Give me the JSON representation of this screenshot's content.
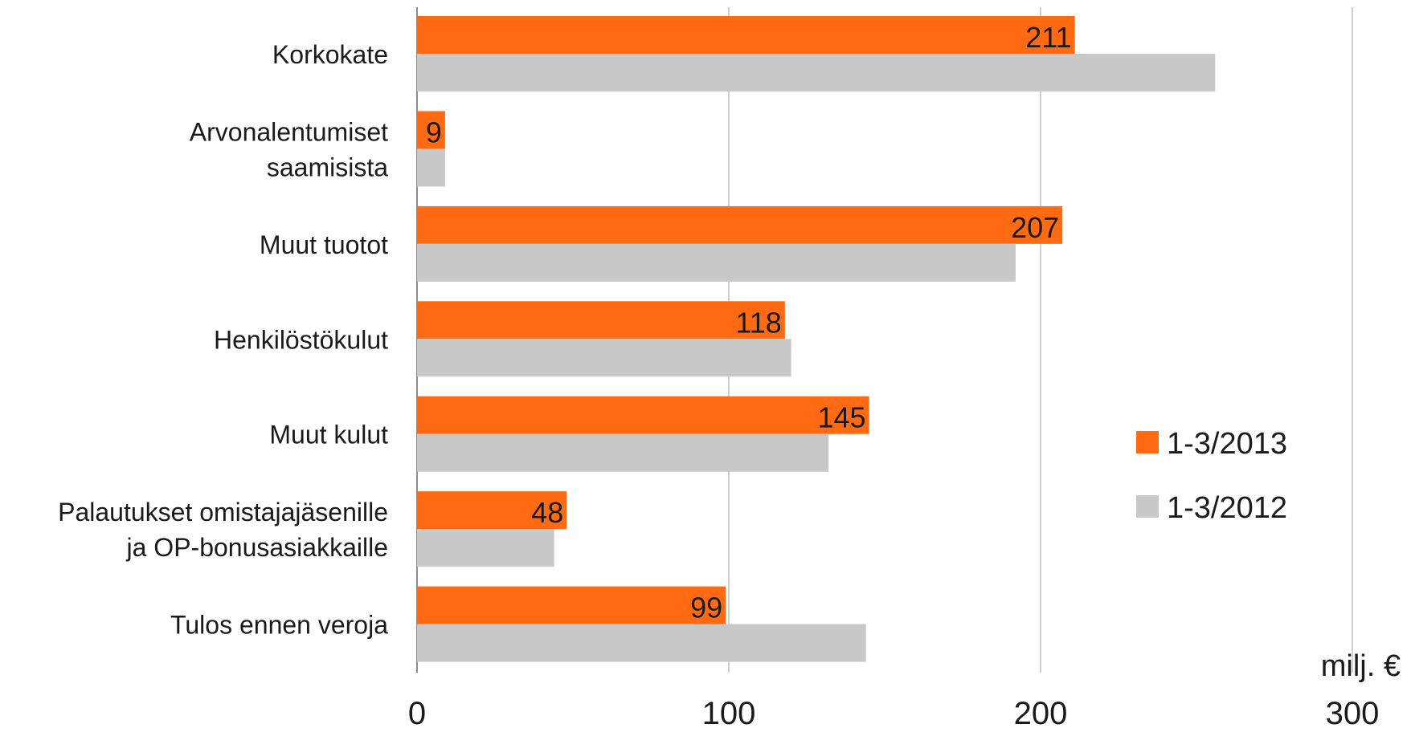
{
  "chart_data": {
    "type": "bar",
    "orientation": "horizontal",
    "categories": [
      [
        "Korkokate"
      ],
      [
        "Arvonalentumiset",
        "saamisista"
      ],
      [
        "Muut tuotot"
      ],
      [
        "Henkilöstökulut"
      ],
      [
        "Muut kulut"
      ],
      [
        "Palautukset omistajajäsenille",
        "ja OP-bonusasiakkaille"
      ],
      [
        "Tulos ennen veroja"
      ]
    ],
    "series": [
      {
        "name": "1-3/2013",
        "color": "#ff6a13",
        "values": [
          211,
          9,
          207,
          118,
          145,
          48,
          99
        ],
        "labels": [
          "211",
          "9",
          "207",
          "118",
          "145",
          "48",
          "99"
        ]
      },
      {
        "name": "1-3/2012",
        "color": "#c8c8c8",
        "values": [
          256,
          9,
          192,
          120,
          132,
          44,
          144
        ]
      }
    ],
    "xlim": [
      0,
      300
    ],
    "xticks": [
      "0",
      "100",
      "200",
      "300"
    ],
    "xlabel": "milj. €",
    "legend_position": "right",
    "grid": true
  }
}
